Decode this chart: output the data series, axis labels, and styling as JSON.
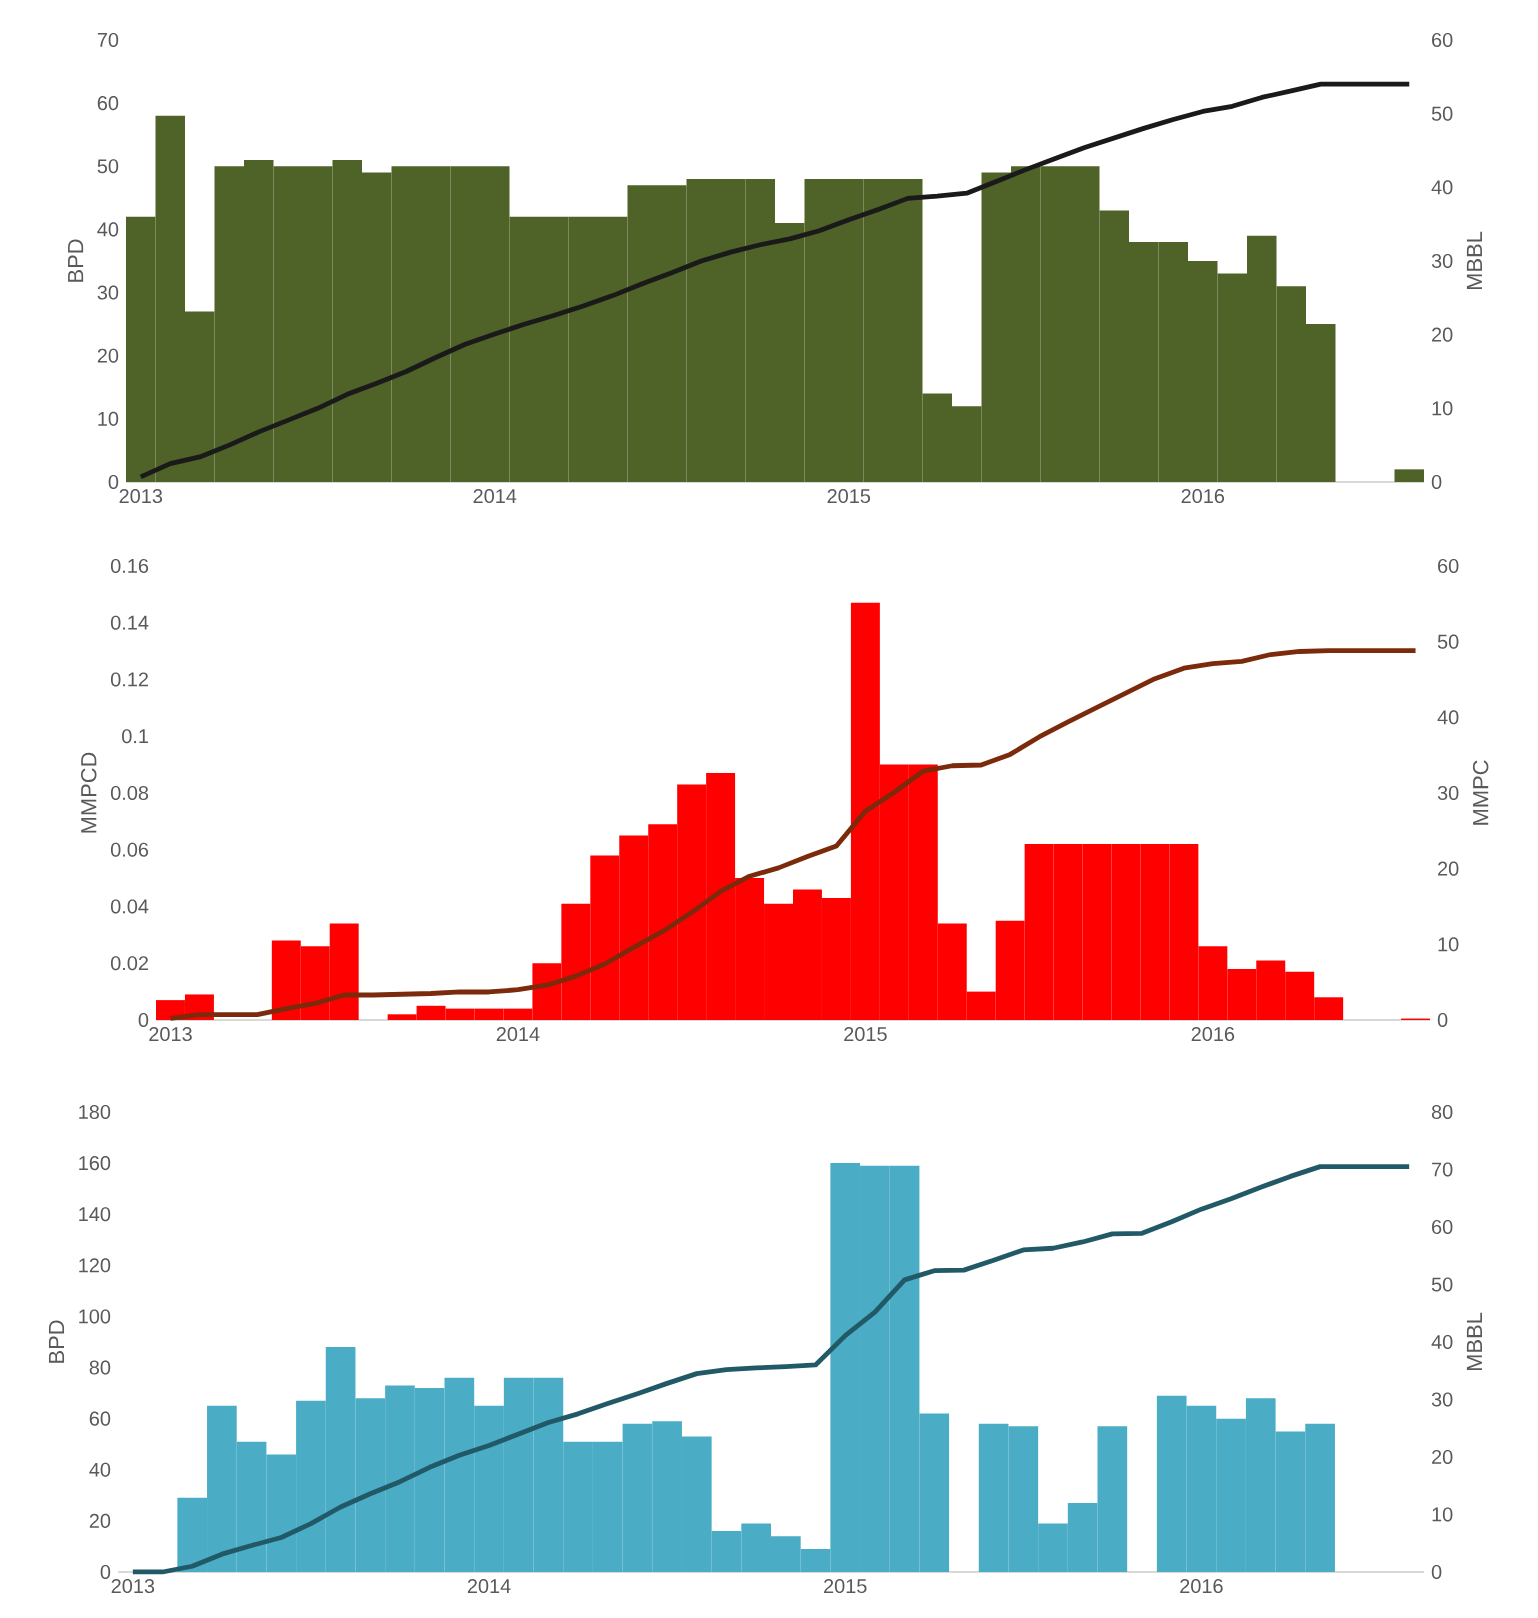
{
  "chart_data": [
    {
      "type": "bar",
      "categories": [
        "2013",
        null,
        null,
        null,
        null,
        null,
        null,
        null,
        null,
        null,
        null,
        null,
        "2014",
        null,
        null,
        null,
        null,
        null,
        null,
        null,
        null,
        null,
        null,
        null,
        "2015",
        null,
        null,
        null,
        null,
        null,
        null,
        null,
        null,
        null,
        null,
        null,
        "2016",
        null,
        null,
        null,
        null,
        null,
        null,
        null
      ],
      "ylabel": "BPD",
      "y2label": "MBBL",
      "ylim": [
        0,
        70
      ],
      "yticks": [
        0,
        10,
        20,
        30,
        40,
        50,
        60,
        70
      ],
      "y2lim": [
        0,
        60
      ],
      "y2ticks": [
        0,
        10,
        20,
        30,
        40,
        50,
        60
      ],
      "series": [
        {
          "color": "#4f6228",
          "values": [
            42,
            58,
            27,
            50,
            51,
            50,
            50,
            51,
            49,
            50,
            50,
            50,
            50,
            42,
            42,
            42,
            42,
            47,
            47,
            48,
            48,
            48,
            41,
            48,
            48,
            48,
            48,
            14,
            12,
            49,
            50,
            50,
            50,
            43,
            38,
            38,
            35,
            33,
            39,
            31,
            25,
            null,
            null,
            2
          ]
        },
        {
          "type": "line",
          "axis": "y2",
          "color": "#1a1a1a",
          "values": [
            0.7,
            2.5,
            3.4,
            5.0,
            6.8,
            8.4,
            10.0,
            11.9,
            13.4,
            15.0,
            16.9,
            18.7,
            20.1,
            21.4,
            22.6,
            23.9,
            25.3,
            26.9,
            28.4,
            30.0,
            31.2,
            32.2,
            33.0,
            34.1,
            35.6,
            37.0,
            38.5,
            38.8,
            39.2,
            40.8,
            42.4,
            43.9,
            45.4,
            46.7,
            48.0,
            49.2,
            50.3,
            51.0,
            52.2,
            53.1,
            54.0,
            54.0,
            54.0,
            54.0
          ]
        }
      ]
    },
    {
      "type": "bar",
      "categories": [
        "2013",
        null,
        null,
        null,
        null,
        null,
        null,
        null,
        null,
        null,
        null,
        null,
        "2014",
        null,
        null,
        null,
        null,
        null,
        null,
        null,
        null,
        null,
        null,
        null,
        "2015",
        null,
        null,
        null,
        null,
        null,
        null,
        null,
        null,
        null,
        null,
        null,
        "2016",
        null,
        null,
        null,
        null,
        null,
        null,
        null
      ],
      "ylabel": "MMPCD",
      "y2label": "MMPC",
      "ylim": [
        0,
        0.16
      ],
      "yticks": [
        0,
        0.02,
        0.04,
        0.06,
        0.08,
        0.1,
        0.12,
        0.14,
        0.16
      ],
      "y2lim": [
        0,
        60
      ],
      "y2ticks": [
        0,
        10,
        20,
        30,
        40,
        50,
        60
      ],
      "series": [
        {
          "color": "#ff0000",
          "values": [
            0.007,
            0.009,
            null,
            null,
            0.028,
            0.026,
            0.034,
            null,
            0.002,
            0.005,
            0.004,
            0.004,
            0.004,
            0.02,
            0.041,
            0.058,
            0.065,
            0.069,
            0.083,
            0.087,
            0.05,
            0.041,
            0.046,
            0.043,
            0.147,
            0.09,
            0.09,
            0.034,
            0.01,
            0.035,
            0.062,
            0.062,
            0.062,
            0.062,
            0.062,
            0.062,
            0.026,
            0.018,
            0.021,
            0.017,
            0.008,
            null,
            null,
            0.0005
          ]
        },
        {
          "type": "line",
          "axis": "y2",
          "color": "#7b2a0c",
          "values": [
            0.2,
            0.7,
            0.7,
            0.7,
            1.5,
            2.2,
            3.3,
            3.3,
            3.4,
            3.5,
            3.7,
            3.7,
            4.0,
            4.6,
            5.8,
            7.4,
            9.6,
            11.7,
            14.2,
            17.0,
            19.0,
            20.1,
            21.6,
            23.0,
            27.6,
            30.1,
            32.9,
            33.6,
            33.7,
            35.1,
            37.4,
            39.4,
            41.3,
            43.2,
            45.1,
            46.5,
            47.1,
            47.4,
            48.3,
            48.7,
            48.8,
            48.8,
            48.8,
            48.8
          ]
        }
      ]
    },
    {
      "type": "bar",
      "categories": [
        "2013",
        null,
        null,
        null,
        null,
        null,
        null,
        null,
        null,
        null,
        null,
        null,
        "2014",
        null,
        null,
        null,
        null,
        null,
        null,
        null,
        null,
        null,
        null,
        null,
        "2015",
        null,
        null,
        null,
        null,
        null,
        null,
        null,
        null,
        null,
        null,
        null,
        "2016",
        null,
        null,
        null,
        null,
        null,
        null,
        null
      ],
      "ylabel": "BPD",
      "y2label": "MBBL",
      "ylim": [
        0,
        180
      ],
      "yticks": [
        0,
        20,
        40,
        60,
        80,
        100,
        120,
        140,
        160,
        180
      ],
      "y2lim": [
        0,
        80
      ],
      "y2ticks": [
        0,
        10,
        20,
        30,
        40,
        50,
        60,
        70,
        80
      ],
      "series": [
        {
          "color": "#4bacc6",
          "values": [
            null,
            null,
            29,
            65,
            51,
            46,
            67,
            88,
            68,
            73,
            72,
            76,
            65,
            76,
            76,
            51,
            51,
            58,
            59,
            53,
            16,
            19,
            14,
            9,
            160,
            159,
            159,
            62,
            null,
            58,
            57,
            19,
            27,
            57,
            null,
            69,
            65,
            60,
            68,
            55,
            58,
            null,
            null,
            null
          ]
        },
        {
          "type": "line",
          "axis": "y2",
          "color": "#215967",
          "values": [
            0,
            0,
            1.0,
            3.1,
            4.6,
            6.0,
            8.4,
            11.3,
            13.6,
            15.7,
            18.2,
            20.3,
            22.0,
            24.0,
            26.0,
            27.5,
            29.3,
            31.0,
            32.8,
            34.5,
            35.2,
            35.5,
            35.7,
            36.0,
            41.1,
            45.2,
            50.8,
            52.4,
            52.5,
            54.2,
            56.0,
            56.3,
            57.4,
            58.8,
            58.9,
            60.9,
            63.1,
            64.9,
            66.9,
            68.8,
            70.5,
            70.5,
            70.5,
            70.5
          ]
        }
      ]
    }
  ]
}
